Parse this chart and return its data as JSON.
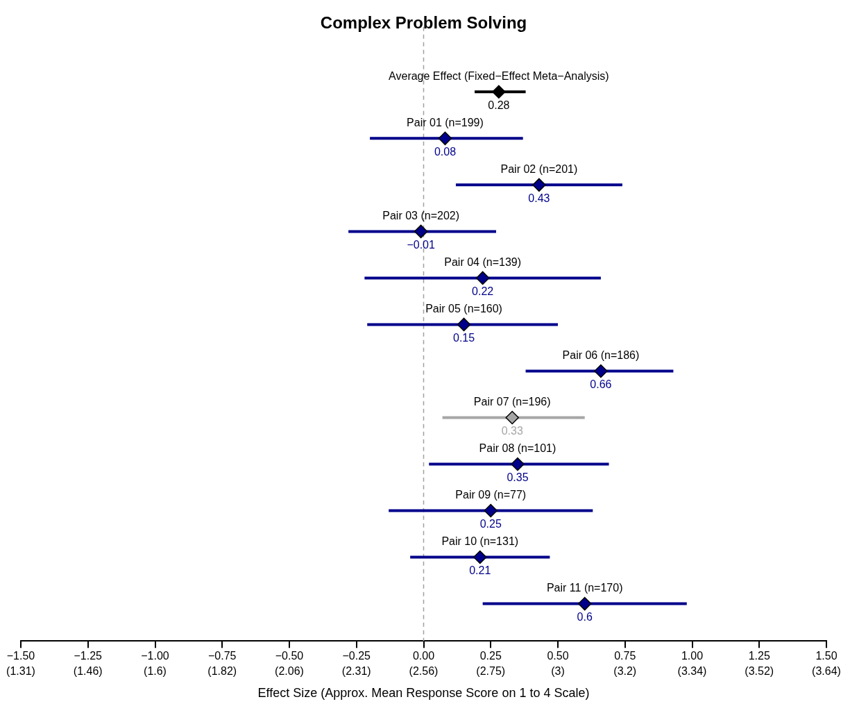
{
  "chart_data": {
    "type": "scatter",
    "orientation": "horizontal",
    "title": "Complex Problem Solving",
    "xlabel": "Effect Size (Approx. Mean Response Score on 1 to 4 Scale)",
    "categories": [
      "Average Effect (Fixed−Effect Meta−Analysis)",
      "Pair 01 (n=199)",
      "Pair 02 (n=201)",
      "Pair 03 (n=202)",
      "Pair 04 (n=139)",
      "Pair 05 (n=160)",
      "Pair 06 (n=186)",
      "Pair 07 (n=196)",
      "Pair 08 (n=101)",
      "Pair 09 (n=77)",
      "Pair 10 (n=131)",
      "Pair 11 (n=170)"
    ],
    "values": [
      0.28,
      0.08,
      0.43,
      -0.01,
      0.22,
      0.15,
      0.66,
      0.33,
      0.35,
      0.25,
      0.21,
      0.6
    ],
    "value_labels": [
      "0.28",
      "0.08",
      "0.43",
      "−0.01",
      "0.22",
      "0.15",
      "0.66",
      "0.33",
      "0.35",
      "0.25",
      "0.21",
      "0.6"
    ],
    "errors": [
      [
        0.19,
        0.38
      ],
      [
        -0.2,
        0.37
      ],
      [
        0.12,
        0.74
      ],
      [
        -0.28,
        0.27
      ],
      [
        -0.22,
        0.66
      ],
      [
        -0.21,
        0.5
      ],
      [
        0.38,
        0.93
      ],
      [
        0.07,
        0.6
      ],
      [
        0.02,
        0.69
      ],
      [
        -0.13,
        0.63
      ],
      [
        -0.05,
        0.47
      ],
      [
        0.22,
        0.98
      ]
    ],
    "colors": [
      "#000000",
      "#00008b",
      "#00008b",
      "#00008b",
      "#00008b",
      "#00008b",
      "#00008b",
      "#a6a6a6",
      "#00008b",
      "#00008b",
      "#00008b",
      "#00008b"
    ],
    "marker": "diamond",
    "xlim": [
      -1.5,
      1.5
    ],
    "xticks": [
      {
        "value": -1.5,
        "label": "−1.50"
      },
      {
        "value": -1.25,
        "label": "−1.25"
      },
      {
        "value": -1,
        "label": "−1.00"
      },
      {
        "value": -0.75,
        "label": "−0.75"
      },
      {
        "value": -0.5,
        "label": "−0.50"
      },
      {
        "value": -0.25,
        "label": "−0.25"
      },
      {
        "value": 0,
        "label": "0.00"
      },
      {
        "value": 0.25,
        "label": "0.25"
      },
      {
        "value": 0.5,
        "label": "0.50"
      },
      {
        "value": 0.75,
        "label": "0.75"
      },
      {
        "value": 1,
        "label": "1.00"
      },
      {
        "value": 1.25,
        "label": "1.25"
      },
      {
        "value": 1.5,
        "label": "1.50"
      }
    ],
    "annotations": [
      "(1.31)",
      "(1.46)",
      "(1.6)",
      "(1.82)",
      "(2.06)",
      "(2.31)",
      "(2.56)",
      "(2.75)",
      "(3)",
      "(3.2)",
      "(3.34)",
      "(3.52)",
      "(3.64)"
    ],
    "ref_lines": [
      {
        "axis": "x",
        "value": 0,
        "color": "#a0a0a0",
        "line_style": "dashed"
      }
    ],
    "grid": false,
    "legend": false,
    "tick_labels": "x"
  }
}
